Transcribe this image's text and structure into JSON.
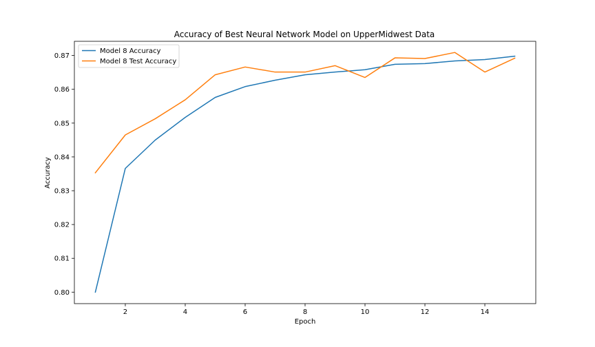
{
  "chart_data": {
    "type": "line",
    "title": "Accuracy of Best Neural Network Model on UpperMidwest Data",
    "xlabel": "Epoch",
    "ylabel": "Accuracy",
    "x": [
      1,
      2,
      3,
      4,
      5,
      6,
      7,
      8,
      9,
      10,
      11,
      12,
      13,
      14,
      15
    ],
    "xlim": [
      0.3,
      15.7
    ],
    "ylim": [
      0.7966,
      0.8742
    ],
    "xticks": [
      2,
      4,
      6,
      8,
      10,
      12,
      14
    ],
    "yticks": [
      0.8,
      0.81,
      0.82,
      0.83,
      0.84,
      0.85,
      0.86,
      0.87
    ],
    "xtick_labels": [
      "2",
      "4",
      "6",
      "8",
      "10",
      "12",
      "14"
    ],
    "ytick_labels": [
      "0.80",
      "0.81",
      "0.82",
      "0.83",
      "0.84",
      "0.85",
      "0.86",
      "0.87"
    ],
    "grid": false,
    "legend": "top-left",
    "series": [
      {
        "name": "Model 8 Accuracy",
        "color": "#1f77b4",
        "values": [
          0.8,
          0.8366,
          0.845,
          0.8517,
          0.8576,
          0.8608,
          0.8627,
          0.8643,
          0.8651,
          0.8658,
          0.8674,
          0.8676,
          0.8684,
          0.8688,
          0.8698
        ]
      },
      {
        "name": "Model 8 Test Accuracy",
        "color": "#ff7f0e",
        "values": [
          0.8353,
          0.8465,
          0.8513,
          0.8569,
          0.8643,
          0.8666,
          0.8651,
          0.8651,
          0.867,
          0.8635,
          0.8693,
          0.8691,
          0.8709,
          0.8651,
          0.8692
        ]
      }
    ]
  }
}
